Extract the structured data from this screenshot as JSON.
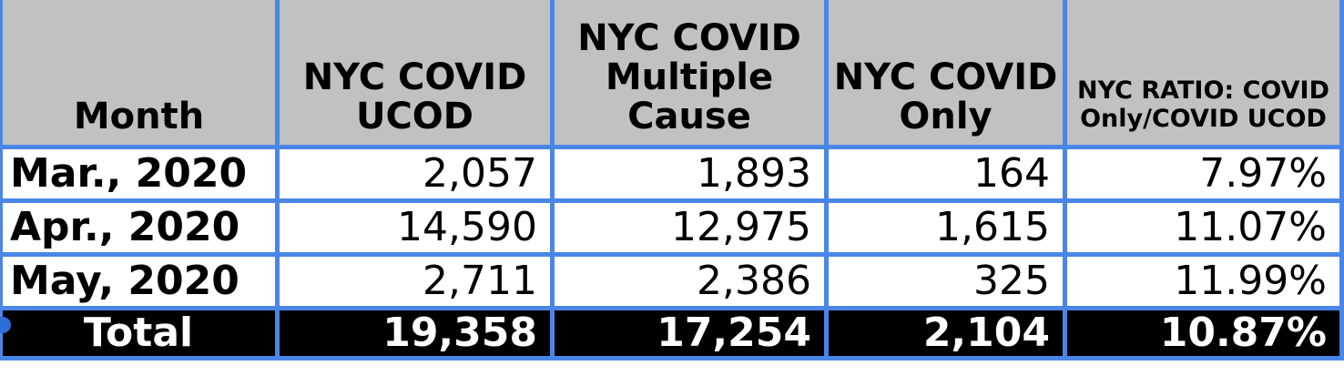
{
  "table": {
    "columns": [
      {
        "label": "Month"
      },
      {
        "label": "NYC COVID UCOD"
      },
      {
        "label": "NYC COVID Multiple Cause"
      },
      {
        "label": "NYC COVID Only"
      },
      {
        "label": "NYC RATIO: COVID Only/COVID UCOD"
      }
    ],
    "rows": [
      {
        "month": "Mar., 2020",
        "ucod": "2,057",
        "multiple_cause": "1,893",
        "covid_only": "164",
        "ratio": "7.97%"
      },
      {
        "month": "Apr., 2020",
        "ucod": "14,590",
        "multiple_cause": "12,975",
        "covid_only": "1,615",
        "ratio": "11.07%"
      },
      {
        "month": "May, 2020",
        "ucod": "2,711",
        "multiple_cause": "2,386",
        "covid_only": "325",
        "ratio": "11.99%"
      }
    ],
    "total": {
      "label": "Total",
      "ucod": "19,358",
      "multiple_cause": "17,254",
      "covid_only": "2,104",
      "ratio": "10.87%"
    }
  },
  "chart_data": {
    "type": "table",
    "columns": [
      "Month",
      "NYC COVID UCOD",
      "NYC COVID Multiple Cause",
      "NYC COVID Only",
      "NYC RATIO: COVID Only/COVID UCOD"
    ],
    "rows": [
      [
        "Mar., 2020",
        2057,
        1893,
        164,
        "7.97%"
      ],
      [
        "Apr., 2020",
        14590,
        12975,
        1615,
        "11.07%"
      ],
      [
        "May, 2020",
        2711,
        2386,
        325,
        "11.99%"
      ],
      [
        "Total",
        19358,
        17254,
        2104,
        "10.87%"
      ]
    ]
  },
  "colors": {
    "border_blue": "#4a86e8",
    "header_bg": "#c1c1c1",
    "highlight_cell_bg": "#f0f0f0",
    "total_row_bg": "#000000",
    "total_row_text": "#ffffff",
    "selection_handle": "#2e6edb"
  },
  "icons": {
    "selection_handle": "selection-handle-dot"
  }
}
